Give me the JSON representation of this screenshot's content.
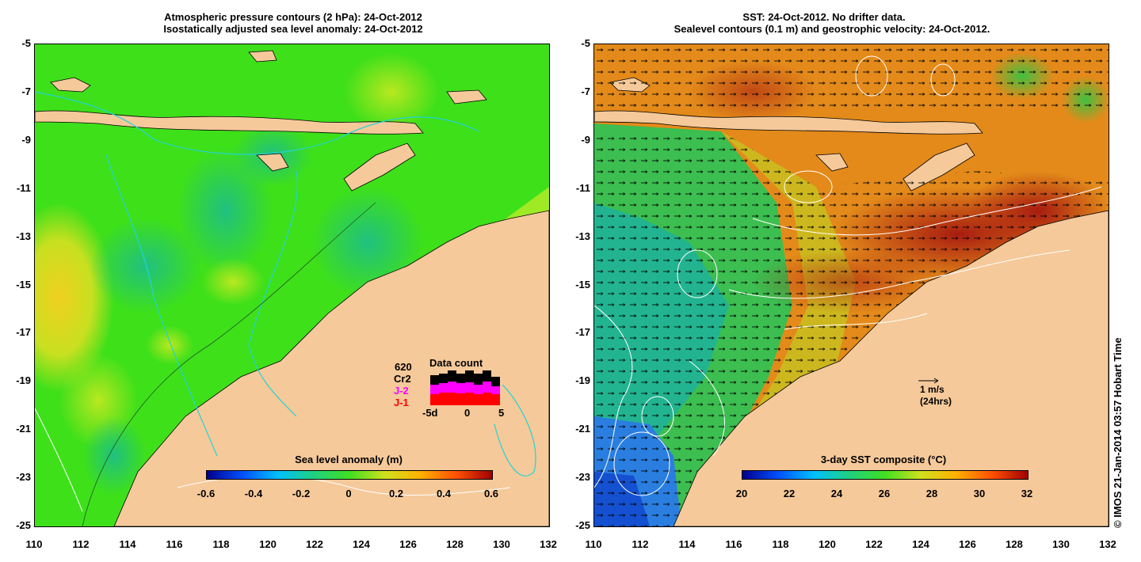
{
  "left_panel": {
    "title_line1": "Atmospheric pressure contours (2 hPa): 24-Oct-2012",
    "title_line2": "Isostatically adjusted sea level anomaly: 24-Oct-2012",
    "colorbar_title": "Sea level anomaly (m)",
    "colorbar_ticks": [
      "-0.6",
      "-0.4",
      "-0.2",
      "0",
      "0.2",
      "0.4",
      "0.6"
    ],
    "data_count": {
      "title": "Data count",
      "total": "620",
      "satellites": [
        "Cr2",
        "J-2",
        "J-1"
      ],
      "satellite_colors": [
        "#000000",
        "#ff00ff",
        "#ff0000"
      ],
      "axis_ticks": [
        "-5d",
        "0",
        "5"
      ]
    }
  },
  "right_panel": {
    "title_line1": "SST: 24-Oct-2012. No drifter data.",
    "title_line2": "Sealevel contours (0.1 m) and geostrophic velocity: 24-Oct-2012.",
    "colorbar_title": "3-day SST composite (°C)",
    "colorbar_ticks": [
      "20",
      "22",
      "24",
      "26",
      "28",
      "30",
      "32"
    ],
    "velocity_scale_label": "1 m/s",
    "velocity_scale_sublabel": "(24hrs)"
  },
  "axes": {
    "lat_ticks": [
      "-5",
      "-7",
      "-9",
      "-11",
      "-13",
      "-15",
      "-17",
      "-19",
      "-21",
      "-23",
      "-25"
    ],
    "lon_ticks": [
      "110",
      "112",
      "114",
      "116",
      "118",
      "120",
      "122",
      "124",
      "126",
      "128",
      "130",
      "132"
    ]
  },
  "credit": "© IMOS 21-Jan-2014 03:57 Hobart Time",
  "colors": {
    "land": "#f5c99a",
    "sla_background": "#3ee01a",
    "sst_background": "#e38a1a"
  }
}
